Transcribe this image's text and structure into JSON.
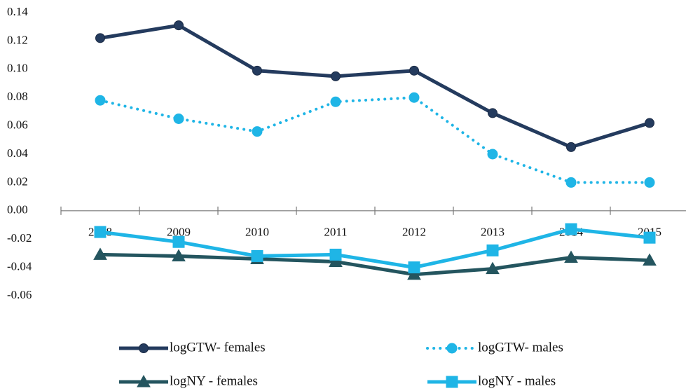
{
  "chart_data": {
    "type": "line",
    "categories": [
      "2008",
      "2009",
      "2010",
      "2011",
      "2012",
      "2013",
      "2014",
      "2015"
    ],
    "series": [
      {
        "name": "logGTW- females",
        "color": "#243b5e",
        "marker": "circle",
        "dashed": false,
        "values": [
          0.122,
          0.131,
          0.099,
          0.095,
          0.099,
          0.069,
          0.045,
          0.062
        ]
      },
      {
        "name": "logGTW- males",
        "color": "#1fb5e6",
        "marker": "circle",
        "dashed": true,
        "values": [
          0.078,
          0.065,
          0.056,
          0.077,
          0.08,
          0.04,
          0.02,
          0.02
        ]
      },
      {
        "name": "logNY - females",
        "color": "#24555f",
        "marker": "triangle",
        "dashed": false,
        "values": [
          -0.031,
          -0.032,
          -0.034,
          -0.036,
          -0.045,
          -0.041,
          -0.033,
          -0.035
        ]
      },
      {
        "name": "logNY - males",
        "color": "#1fb5e6",
        "marker": "square",
        "dashed": false,
        "values": [
          -0.015,
          -0.022,
          -0.032,
          -0.031,
          -0.04,
          -0.028,
          -0.013,
          -0.019
        ]
      }
    ],
    "ylim": [
      -0.06,
      0.14
    ],
    "yticks": [
      0.14,
      0.12,
      {
        "value": 0.1,
        "label": "0.10"
      },
      0.08,
      0.06,
      0.04,
      0.02,
      {
        "value": 0,
        "label": "0.00"
      },
      -0.02,
      -0.04,
      -0.06
    ],
    "grid": false,
    "legend": "bottom"
  }
}
